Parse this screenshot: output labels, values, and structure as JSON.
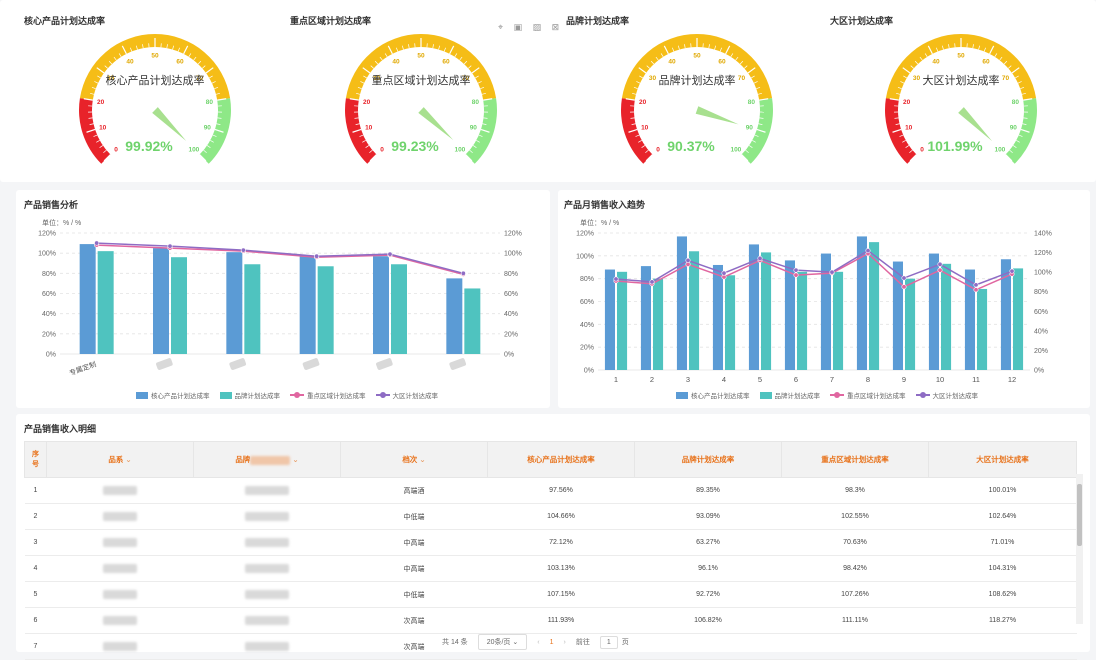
{
  "gauges": [
    {
      "title": "核心产品计划达成率",
      "inner_label": "核心产品计划达成率",
      "value_text": "99.92%",
      "value": 99.92
    },
    {
      "title": "重点区域计划达成率",
      "inner_label": "重点区域计划达成率",
      "value_text": "99.23%",
      "value": 99.23
    },
    {
      "title": "品牌计划达成率",
      "inner_label": "品牌计划达成率",
      "value_text": "90.37%",
      "value": 90.37
    },
    {
      "title": "大区计划达成率",
      "inner_label": "大区计划达成率",
      "value_text": "101.99%",
      "value": 101.99
    }
  ],
  "gauge_ticks": [
    "0",
    "10",
    "20",
    "30",
    "40",
    "50",
    "60",
    "70",
    "80",
    "90",
    "100"
  ],
  "gauge_colors": {
    "red": "#e8232a",
    "yellow": "#f5bd17",
    "green": "#8ee887",
    "pointer": "#a8e08f",
    "value": "#6fd36c"
  },
  "toolbox_icons": [
    "move-icon",
    "zoom-icon",
    "restore-icon",
    "save-icon"
  ],
  "toolbox_glyphs": "⌖ ▣ ▨ ⊠",
  "colors": {
    "blue": "#5b9bd5",
    "teal": "#4fc3bf",
    "pink": "#e066a0",
    "purple": "#8e6cc4"
  },
  "chart_data": [
    {
      "type": "bar",
      "title": "产品销售分析",
      "unit": "单位：% / %",
      "categories": [
        "专属定制",
        "",
        "",
        "",
        "",
        ""
      ],
      "series": [
        {
          "name": "核心产品计划达成率",
          "kind": "bar",
          "axis": "left",
          "values": [
            109,
            105,
            101,
            97,
            97,
            75
          ]
        },
        {
          "name": "品牌计划达成率",
          "kind": "bar",
          "axis": "left",
          "values": [
            102,
            96,
            89,
            87,
            89,
            65
          ]
        },
        {
          "name": "重点区域计划达成率",
          "kind": "line",
          "axis": "right",
          "values": [
            108,
            105,
            102,
            96,
            98,
            79
          ]
        },
        {
          "name": "大区计划达成率",
          "kind": "line",
          "axis": "right",
          "values": [
            110,
            107,
            103,
            97,
            99,
            80
          ]
        }
      ],
      "ylim_left": [
        0,
        120
      ],
      "ylim_right": [
        0,
        120
      ],
      "yticks_left": [
        "0%",
        "20%",
        "40%",
        "60%",
        "80%",
        "100%",
        "120%"
      ],
      "yticks_right": [
        "0%",
        "20%",
        "40%",
        "60%",
        "80%",
        "100%",
        "120%"
      ],
      "grid": true,
      "legend": "bottom"
    },
    {
      "type": "bar",
      "title": "产品月销售收入趋势",
      "unit": "单位：% / %",
      "categories": [
        "1",
        "2",
        "3",
        "4",
        "5",
        "6",
        "7",
        "8",
        "9",
        "10",
        "11",
        "12"
      ],
      "series": [
        {
          "name": "核心产品计划达成率",
          "kind": "bar",
          "axis": "left",
          "values": [
            88,
            91,
            117,
            92,
            110,
            96,
            102,
            117,
            95,
            102,
            88,
            97
          ]
        },
        {
          "name": "品牌计划达成率",
          "kind": "bar",
          "axis": "left",
          "values": [
            86,
            80,
            104,
            83,
            103,
            86,
            86,
            112,
            80,
            93,
            71,
            89
          ]
        },
        {
          "name": "重点区域计划达成率",
          "kind": "line",
          "axis": "right",
          "values": [
            91,
            88,
            108,
            95,
            112,
            97,
            99,
            119,
            85,
            102,
            82,
            98
          ]
        },
        {
          "name": "大区计划达成率",
          "kind": "line",
          "axis": "right",
          "values": [
            93,
            90,
            112,
            99,
            114,
            102,
            100,
            122,
            94,
            108,
            87,
            101
          ]
        }
      ],
      "ylim_left": [
        0,
        120
      ],
      "ylim_right": [
        0,
        140
      ],
      "yticks_left": [
        "0%",
        "20%",
        "40%",
        "60%",
        "80%",
        "100%",
        "120%"
      ],
      "yticks_right": [
        "0%",
        "20%",
        "40%",
        "60%",
        "80%",
        "100%",
        "120%",
        "140%"
      ],
      "grid": true,
      "legend": "bottom"
    }
  ],
  "table": {
    "title": "产品销售收入明细",
    "headers": [
      "序号",
      "品系",
      "品牌",
      "档次",
      "核心产品计划达成率",
      "品牌计划达成率",
      "重点区域计划达成率",
      "大区计划达成率"
    ],
    "rows": [
      [
        "1",
        "",
        "",
        "高端酒",
        "97.56%",
        "89.35%",
        "98.3%",
        "100.01%"
      ],
      [
        "2",
        "",
        "",
        "中低端",
        "104.66%",
        "93.09%",
        "102.55%",
        "102.64%"
      ],
      [
        "3",
        "",
        "",
        "中高端",
        "72.12%",
        "63.27%",
        "70.63%",
        "71.01%"
      ],
      [
        "4",
        "",
        "",
        "中高端",
        "103.13%",
        "96.1%",
        "98.42%",
        "104.31%"
      ],
      [
        "5",
        "",
        "",
        "中低端",
        "107.15%",
        "92.72%",
        "107.26%",
        "108.62%"
      ],
      [
        "6",
        "",
        "",
        "次高端",
        "111.93%",
        "106.82%",
        "111.11%",
        "118.27%"
      ],
      [
        "7",
        "",
        "",
        "次高端",
        "",
        "",
        "",
        ""
      ]
    ]
  },
  "pagination": {
    "total": "共 14 条",
    "page_size": "20条/页",
    "prev": "‹",
    "current": "1",
    "next": "›",
    "goto_label": "前往",
    "goto_value": "1",
    "page_suffix": "页"
  }
}
